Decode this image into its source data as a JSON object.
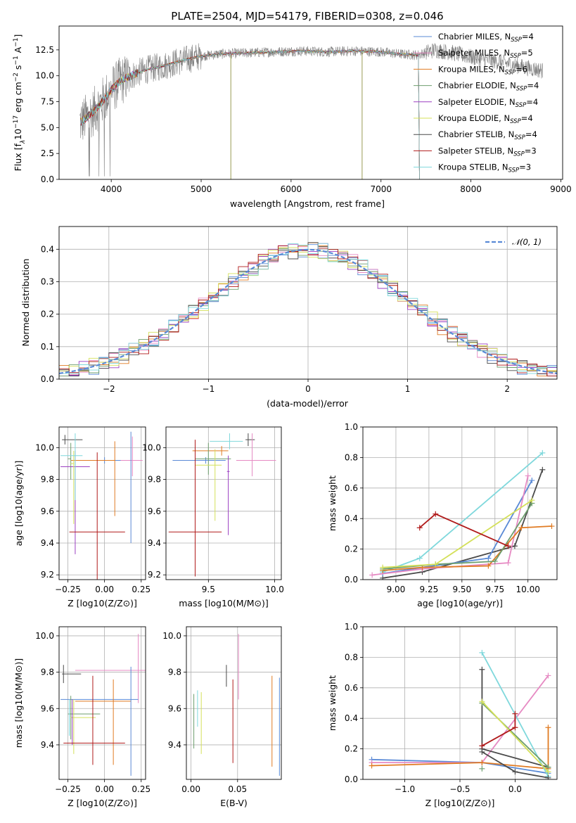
{
  "colors": {
    "Chabrier MILES": "#5a8ad6",
    "Salpeter MILES": "#e68ac3",
    "Kroupa MILES": "#e07b23",
    "Chabrier ELODIE": "#6e9e6e",
    "Salpeter ELODIE": "#9b3fc2",
    "Kroupa ELODIE": "#d4e05a",
    "Chabrier STELIB": "#4a4a4a",
    "Salpeter STELIB": "#b01a1a",
    "Kroupa STELIB": "#7fd8dc",
    "spectrum": "#808080",
    "normal": "#5a8ad6"
  },
  "chart_data": [
    {
      "id": "spectrum",
      "type": "line",
      "title": "PLATE=2504, MJD=54179, FIBERID=0308, z=0.046",
      "xlabel": "wavelength [Angstrom, rest frame]",
      "ylabel": "Flux [f",
      "ylabel_parts": [
        "Flux [f",
        "λ",
        "10",
        "−17",
        " erg cm",
        "−2",
        " s",
        "−1",
        " A",
        "−1",
        "]"
      ],
      "xlim": [
        3420,
        9020
      ],
      "ylim": [
        0,
        14.8
      ],
      "xticks": [
        4000,
        5000,
        6000,
        7000,
        8000,
        9000
      ],
      "yticks": [
        0.0,
        2.5,
        5.0,
        7.5,
        10.0,
        12.5
      ],
      "ytick_labels": [
        "0.0",
        "2.5",
        "5.0",
        "7.5",
        "10.0",
        "12.5"
      ],
      "grid": false,
      "legend_position": "top-right",
      "series": [
        {
          "name": "Chabrier MILES",
          "nssp": "4"
        },
        {
          "name": "Salpeter MILES",
          "nssp": "5"
        },
        {
          "name": "Kroupa MILES",
          "nssp": "6"
        },
        {
          "name": "Chabrier ELODIE",
          "nssp": "4"
        },
        {
          "name": "Salpeter ELODIE",
          "nssp": "4"
        },
        {
          "name": "Kroupa ELODIE",
          "nssp": "4"
        },
        {
          "name": "Chabrier STELIB",
          "nssp": "4"
        },
        {
          "name": "Salpeter STELIB",
          "nssp": "3"
        },
        {
          "name": "Kroupa STELIB",
          "nssp": "3"
        }
      ],
      "continuum": {
        "x": [
          3650,
          3700,
          3800,
          3900,
          4000,
          4100,
          4200,
          4300,
          4400,
          4600,
          4800,
          5000,
          5200,
          5500,
          5800,
          6100,
          6400,
          6700,
          7000,
          7200,
          7400,
          7600,
          7800,
          8000,
          8200,
          8400,
          8600,
          8800
        ],
        "y": [
          5.5,
          5.8,
          6.5,
          7.5,
          8.6,
          9.5,
          9.9,
          10.3,
          10.6,
          11.0,
          11.5,
          11.9,
          12.1,
          12.2,
          12.3,
          12.4,
          12.3,
          12.4,
          12.3,
          12.1,
          12.0,
          12.5,
          12.2,
          11.8,
          11.5,
          11.2,
          10.8,
          10.5
        ]
      },
      "model_end": 7420
    },
    {
      "id": "residuals",
      "type": "step",
      "xlabel": "(data-model)/error",
      "ylabel": "Normed distribution",
      "xlim": [
        -2.5,
        2.5
      ],
      "ylim": [
        0,
        0.47
      ],
      "xticks": [
        -2,
        -1,
        0,
        1,
        2
      ],
      "xtick_labels": [
        "−2",
        "−1",
        "0",
        "1",
        "2"
      ],
      "yticks": [
        0.0,
        0.1,
        0.2,
        0.3,
        0.4
      ],
      "ytick_labels": [
        "0.0",
        "0.1",
        "0.2",
        "0.3",
        "0.4"
      ],
      "grid": true,
      "legend": "𝒩(0, 1)",
      "legend_position": "top-right",
      "bins": 50
    },
    {
      "id": "age-vs-Z",
      "type": "errorbar",
      "xlabel": "Z [log10(Z/Z⊙)]",
      "ylabel": "age  [log10(age/yr)]",
      "xlim": [
        -0.31,
        0.28
      ],
      "ylim": [
        9.17,
        10.13
      ],
      "xticks": [
        -0.25,
        0.0,
        0.25
      ],
      "xtick_labels": [
        "−0.25",
        "0.00",
        "0.25"
      ],
      "yticks": [
        9.2,
        9.4,
        9.6,
        9.8,
        10.0
      ],
      "ytick_labels": [
        "9.2",
        "9.4",
        "9.6",
        "9.8",
        "10.0"
      ],
      "grid": true,
      "points": [
        {
          "s": "Chabrier STELIB",
          "x": -0.27,
          "xerr": [
            0.02,
            0.12
          ],
          "y": 10.05,
          "yerr": [
            0.03,
            0.03
          ]
        },
        {
          "s": "Chabrier MILES",
          "x": 0.0,
          "xerr": [
            0.15,
            0.2
          ],
          "y": 9.92,
          "yerr": [
            0.02,
            0.02
          ]
        },
        {
          "s": "Salpeter MILES",
          "x": 0.19,
          "xerr": [
            0.08,
            0.07
          ],
          "y": 9.92,
          "yerr": [
            0.1,
            0.15
          ]
        },
        {
          "s": "Kroupa MILES",
          "x": 0.07,
          "xerr": [
            0.3,
            0.0
          ],
          "y": 9.92,
          "yerr": [
            0.35,
            0.12
          ]
        },
        {
          "s": "Chabrier ELODIE",
          "x": -0.23,
          "xerr": [
            0.02,
            0.0
          ],
          "y": 9.93,
          "yerr": [
            0.13,
            0.1
          ]
        },
        {
          "s": "Salpeter ELODIE",
          "x": -0.2,
          "xerr": [
            0.1,
            0.1
          ],
          "y": 9.88,
          "yerr": [
            0.55,
            0.1
          ]
        },
        {
          "s": "Kroupa ELODIE",
          "x": -0.21,
          "xerr": [
            0.02,
            0.0
          ],
          "y": 9.9,
          "yerr": [
            0.38,
            0.08
          ]
        },
        {
          "s": "Kroupa STELIB",
          "x": -0.2,
          "xerr": [
            0.1,
            0.05
          ],
          "y": 9.95,
          "yerr": [
            0.28,
            0.14
          ]
        },
        {
          "s": "Salpeter STELIB",
          "x": -0.05,
          "xerr": [
            0.19,
            0.19
          ],
          "y": 9.47,
          "yerr": [
            0.3,
            0.5
          ]
        },
        {
          "s": "Chabrier MILES",
          "x": 0.18,
          "xerr": [
            0.0,
            0.0
          ],
          "y": 9.75,
          "yerr": [
            0.35,
            0.35
          ]
        }
      ]
    },
    {
      "id": "age-vs-mass",
      "type": "errorbar",
      "xlabel": "mass [log10(M/M⊙)]",
      "xlim": [
        9.18,
        10.05
      ],
      "ylim": [
        9.17,
        10.13
      ],
      "xticks": [
        9.5,
        10.0
      ],
      "xtick_labels": [
        "9.5",
        "10.0"
      ],
      "yticks": [
        9.2,
        9.4,
        9.6,
        9.8,
        10.0
      ],
      "ytick_labels": [
        "9.2",
        "9.4",
        "9.6",
        "9.8",
        "10.0"
      ],
      "grid": true,
      "points": [
        {
          "s": "Chabrier STELIB",
          "x": 9.8,
          "xerr": [
            0.02,
            0.05
          ],
          "y": 10.05,
          "yerr": [
            0.04,
            0.04
          ]
        },
        {
          "s": "Salpeter MILES",
          "x": 9.83,
          "xerr": [
            0.12,
            0.18
          ],
          "y": 9.92,
          "yerr": [
            0.1,
            0.17
          ]
        },
        {
          "s": "Kroupa STELIB",
          "x": 9.66,
          "xerr": [
            0.15,
            0.1
          ],
          "y": 10.04,
          "yerr": [
            0.05,
            0.05
          ]
        },
        {
          "s": "Kroupa MILES",
          "x": 9.6,
          "xerr": [
            0.22,
            0.05
          ],
          "y": 9.98,
          "yerr": [
            0.03,
            0.03
          ]
        },
        {
          "s": "Chabrier MILES",
          "x": 9.48,
          "xerr": [
            0.25,
            0.15
          ],
          "y": 9.92,
          "yerr": [
            0.02,
            0.02
          ]
        },
        {
          "s": "Chabrier ELODIE",
          "x": 9.5,
          "xerr": [
            0.1,
            0.17
          ],
          "y": 9.93,
          "yerr": [
            0.1,
            0.1
          ]
        },
        {
          "s": "Kroupa ELODIE",
          "x": 9.55,
          "xerr": [
            0.15,
            0.05
          ],
          "y": 9.89,
          "yerr": [
            0.35,
            0.1
          ]
        },
        {
          "s": "Salpeter ELODIE",
          "x": 9.65,
          "xerr": [
            0.01,
            0.01
          ],
          "y": 9.85,
          "yerr": [
            0.4,
            0.1
          ]
        },
        {
          "s": "Salpeter STELIB",
          "x": 9.4,
          "xerr": [
            0.2,
            0.2
          ],
          "y": 9.47,
          "yerr": [
            0.28,
            0.58
          ]
        }
      ]
    },
    {
      "id": "mass-weight-vs-age",
      "type": "line",
      "xlabel": "age  [log10(age/yr)]",
      "ylabel": "mass weight",
      "xlim": [
        8.75,
        10.22
      ],
      "ylim": [
        0,
        1
      ],
      "xticks": [
        9.0,
        9.25,
        9.5,
        9.75,
        10.0
      ],
      "xtick_labels": [
        "9.00",
        "9.25",
        "9.50",
        "9.75",
        "10.00"
      ],
      "yticks": [
        0.0,
        0.2,
        0.4,
        0.6,
        0.8,
        1.0
      ],
      "ytick_labels": [
        "0.0",
        "0.2",
        "0.4",
        "0.6",
        "0.8",
        "1.0"
      ],
      "grid": true,
      "series": [
        {
          "name": "Kroupa STELIB",
          "x": [
            8.9,
            9.18,
            10.11
          ],
          "y": [
            0.05,
            0.14,
            0.83
          ]
        },
        {
          "name": "Chabrier STELIB",
          "x": [
            8.9,
            9.2,
            9.9,
            10.11
          ],
          "y": [
            0.01,
            0.05,
            0.22,
            0.72
          ]
        },
        {
          "name": "Chabrier MILES",
          "x": [
            8.9,
            9.2,
            9.7,
            10.03
          ],
          "y": [
            0.04,
            0.08,
            0.14,
            0.65
          ]
        },
        {
          "name": "Salpeter MILES",
          "x": [
            8.82,
            9.2,
            9.85,
            10.0
          ],
          "y": [
            0.03,
            0.07,
            0.11,
            0.68
          ]
        },
        {
          "name": "Kroupa MILES",
          "x": [
            8.9,
            9.2,
            9.7,
            9.95,
            10.18
          ],
          "y": [
            0.06,
            0.08,
            0.09,
            0.34,
            0.35
          ]
        },
        {
          "name": "Chabrier ELODIE",
          "x": [
            8.9,
            9.3,
            9.75,
            10.03
          ],
          "y": [
            0.07,
            0.1,
            0.12,
            0.5
          ]
        },
        {
          "name": "Kroupa ELODIE",
          "x": [
            8.9,
            9.3,
            10.03
          ],
          "y": [
            0.08,
            0.1,
            0.52
          ]
        },
        {
          "name": "Salpeter STELIB",
          "x": [
            9.18,
            9.3,
            9.85
          ],
          "y": [
            0.34,
            0.43,
            0.22
          ]
        }
      ]
    },
    {
      "id": "mass-vs-Z",
      "type": "errorbar",
      "xlabel": "Z [log10(Z/Z⊙)]",
      "ylabel": "mass [log10(M/M⊙)]",
      "xlim": [
        -0.31,
        0.28
      ],
      "ylim": [
        9.21,
        10.05
      ],
      "xticks": [
        -0.25,
        0.0,
        0.25
      ],
      "xtick_labels": [
        "−0.25",
        "0.00",
        "0.25"
      ],
      "yticks": [
        9.4,
        9.6,
        9.8,
        10.0
      ],
      "ytick_labels": [
        "9.4",
        "9.6",
        "9.8",
        "10.0"
      ],
      "grid": true,
      "points": [
        {
          "s": "Chabrier STELIB",
          "x": -0.28,
          "xerr": [
            0.01,
            0.12
          ],
          "y": 9.79,
          "yerr": [
            0.05,
            0.05
          ]
        },
        {
          "s": "Salpeter MILES",
          "x": 0.23,
          "xerr": [
            0.43,
            0.05
          ],
          "y": 9.81,
          "yerr": [
            0.18,
            0.2
          ]
        },
        {
          "s": "Chabrier MILES",
          "x": -0.1,
          "xerr": [
            0.2,
            0.33
          ],
          "y": 9.65,
          "yerr": [
            0.0,
            0.0
          ]
        },
        {
          "s": "Kroupa MILES",
          "x": 0.06,
          "xerr": [
            0.26,
            0.12
          ],
          "y": 9.64,
          "yerr": [
            0.35,
            0.12
          ]
        },
        {
          "s": "Chabrier ELODIE",
          "x": -0.23,
          "xerr": [
            0.02,
            0.2
          ],
          "y": 9.57,
          "yerr": [
            0.14,
            0.1
          ]
        },
        {
          "s": "Kroupa ELODIE",
          "x": -0.21,
          "xerr": [
            0.02,
            0.15
          ],
          "y": 9.55,
          "yerr": [
            0.2,
            0.1
          ]
        },
        {
          "s": "Salpeter ELODIE",
          "x": -0.22,
          "xerr": [
            0.0,
            0.0
          ],
          "y": 9.6,
          "yerr": [
            0.2,
            0.05
          ]
        },
        {
          "s": "Kroupa STELIB",
          "x": -0.24,
          "xerr": [
            0.0,
            0.0
          ],
          "y": 9.6,
          "yerr": [
            0.15,
            0.05
          ]
        },
        {
          "s": "Salpeter STELIB",
          "x": -0.08,
          "xerr": [
            0.2,
            0.22
          ],
          "y": 9.41,
          "yerr": [
            0.12,
            0.37
          ]
        },
        {
          "s": "Chabrier MILES",
          "x": 0.18,
          "xerr": [
            0.0,
            0.0
          ],
          "y": 9.53,
          "yerr": [
            0.3,
            0.3
          ]
        }
      ]
    },
    {
      "id": "mass-vs-EBV",
      "type": "errorbar",
      "xlabel": "E(B-V)",
      "xlim": [
        -0.005,
        0.097
      ],
      "ylim": [
        9.21,
        10.05
      ],
      "xticks": [
        0.0,
        0.05
      ],
      "xtick_labels": [
        "0.00",
        "0.05"
      ],
      "yticks": [
        9.4,
        9.6,
        9.8,
        10.0
      ],
      "ytick_labels": [
        "9.4",
        "9.6",
        "9.8",
        "10.0"
      ],
      "grid": true,
      "points": [
        {
          "s": "Chabrier ELODIE",
          "x": 0.003,
          "xerr": [
            0,
            0
          ],
          "y": 9.53,
          "yerr": [
            0.15,
            0.15
          ]
        },
        {
          "s": "Kroupa STELIB",
          "x": 0.007,
          "xerr": [
            0,
            0
          ],
          "y": 9.6,
          "yerr": [
            0.1,
            0.1
          ]
        },
        {
          "s": "Kroupa ELODIE",
          "x": 0.011,
          "xerr": [
            0,
            0
          ],
          "y": 9.52,
          "yerr": [
            0.17,
            0.17
          ]
        },
        {
          "s": "Chabrier STELIB",
          "x": 0.038,
          "xerr": [
            0,
            0
          ],
          "y": 9.78,
          "yerr": [
            0.06,
            0.06
          ]
        },
        {
          "s": "Salpeter STELIB",
          "x": 0.045,
          "xerr": [
            0,
            0
          ],
          "y": 9.53,
          "yerr": [
            0.23,
            0.23
          ]
        },
        {
          "s": "Salpeter MILES",
          "x": 0.051,
          "xerr": [
            0,
            0
          ],
          "y": 9.83,
          "yerr": [
            0.18,
            0.18
          ]
        },
        {
          "s": "Kroupa MILES",
          "x": 0.087,
          "xerr": [
            0,
            0
          ],
          "y": 9.53,
          "yerr": [
            0.25,
            0.25
          ]
        },
        {
          "s": "Chabrier MILES",
          "x": 0.095,
          "xerr": [
            0,
            0
          ],
          "y": 9.5,
          "yerr": [
            0.27,
            0.27
          ]
        }
      ]
    },
    {
      "id": "mass-weight-vs-Z",
      "type": "line",
      "xlabel": "Z [log10(Z/Z⊙)]",
      "ylabel": "mass weight",
      "xlim": [
        -1.38,
        0.38
      ],
      "ylim": [
        0,
        1
      ],
      "xticks": [
        -1.0,
        -0.5,
        0.0
      ],
      "xtick_labels": [
        "−1.0",
        "−0.5",
        "0.0"
      ],
      "yticks": [
        0.0,
        0.2,
        0.4,
        0.6,
        0.8,
        1.0
      ],
      "ytick_labels": [
        "0.0",
        "0.2",
        "0.4",
        "0.6",
        "0.8",
        "1.0"
      ],
      "grid": true,
      "series": [
        {
          "name": "Chabrier MILES",
          "x": [
            -1.3,
            -0.3,
            0.3
          ],
          "y": [
            0.13,
            0.11,
            0.04
          ]
        },
        {
          "name": "Salpeter MILES",
          "x": [
            -1.3,
            -0.3,
            0.3
          ],
          "y": [
            0.11,
            0.11,
            0.68
          ]
        },
        {
          "name": "Kroupa MILES",
          "x": [
            -1.3,
            -0.3,
            0.3,
            0.3
          ],
          "y": [
            0.09,
            0.11,
            0.07,
            0.34
          ]
        },
        {
          "name": "Kroupa STELIB",
          "x": [
            -0.3,
            0.3
          ],
          "y": [
            0.83,
            0.02
          ]
        },
        {
          "name": "Chabrier STELIB",
          "x": [
            -0.3,
            -0.3,
            0.3
          ],
          "y": [
            0.72,
            0.2,
            0.08
          ]
        },
        {
          "name": "Chabrier STELIB",
          "x": [
            -0.3,
            0.0,
            0.3
          ],
          "y": [
            0.18,
            0.05,
            0.01
          ]
        },
        {
          "name": "Chabrier ELODIE",
          "x": [
            -0.3,
            0.3
          ],
          "y": [
            0.5,
            0.08
          ]
        },
        {
          "name": "Kroupa ELODIE",
          "x": [
            -0.3,
            0.3
          ],
          "y": [
            0.51,
            0.05
          ]
        },
        {
          "name": "Salpeter STELIB",
          "x": [
            -0.3,
            0.0,
            0.0
          ],
          "y": [
            0.22,
            0.34,
            0.43
          ]
        },
        {
          "name": "Chabrier ELODIE",
          "x": [
            -0.3
          ],
          "y": [
            0.07
          ]
        }
      ]
    }
  ]
}
